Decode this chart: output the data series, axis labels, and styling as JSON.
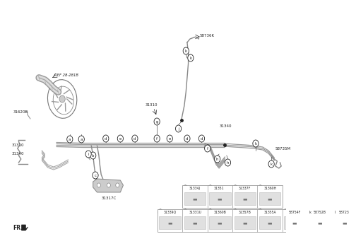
{
  "bg_color": "#ffffff",
  "line_color": "#888888",
  "label_color": "#222222",
  "part_numbers_row1": [
    "31334J",
    "31351",
    "31337F",
    "31360H"
  ],
  "part_letters_row1": [
    "a",
    "b",
    "c",
    "d"
  ],
  "part_numbers_row2": [
    "31339Q",
    "31331U",
    "31360B",
    "31357B",
    "31355A",
    "58754F",
    "58752B",
    "58723"
  ],
  "part_letters_row2": [
    "e",
    "f",
    "g",
    "h",
    "i",
    "j",
    "k",
    "l"
  ],
  "ref_label": "REF 28-281B",
  "label_31620B": "31620B",
  "label_31310a": "31310",
  "label_31340a": "31340",
  "label_31317C": "31317C",
  "label_31310b": "31310",
  "label_31340b": "31340",
  "label_58736K": "58736K",
  "label_58735M": "58735M",
  "fr_label": "FR."
}
